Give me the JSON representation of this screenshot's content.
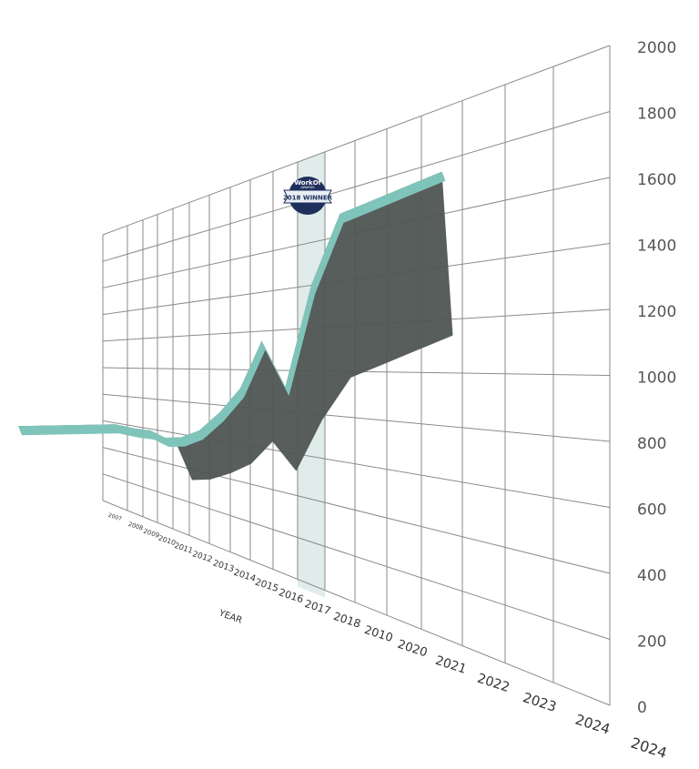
{
  "chart_data": {
    "type": "area",
    "title": "",
    "xlabel": "YEAR",
    "ylabel": "",
    "ylim": [
      0,
      2000
    ],
    "y_ticks": [
      "0",
      "200",
      "400",
      "600",
      "800",
      "1000",
      "1200",
      "1400",
      "1600",
      "1800",
      "2000"
    ],
    "categories": [
      "2007",
      "2008",
      "2009",
      "2010",
      "2011",
      "2012",
      "2013",
      "2014",
      "2015",
      "2016",
      "2017",
      "2018",
      "2010",
      "2020",
      "2021",
      "2022",
      "2023",
      "2024",
      "2024"
    ],
    "series": [
      {
        "values": [
          590,
          585,
          590,
          560,
          580,
          640,
          760,
          900,
          1150,
          920,
          1400,
          1700,
          1720,
          1740,
          1760,
          null,
          null,
          null,
          null
        ]
      }
    ],
    "highlight_category": "2018",
    "grid": true,
    "perspective": "3d ribbon",
    "colors": {
      "ribbon_top": "#7fc4ba",
      "ribbon_side": "#4f5553",
      "highlight": "#dfecea",
      "grid": "#8a8a8a",
      "badge": "#1f2f5c"
    }
  },
  "badge": {
    "line1": "WorkOf",
    "line2": "AWARDS",
    "line3": "2018 WINNER"
  }
}
